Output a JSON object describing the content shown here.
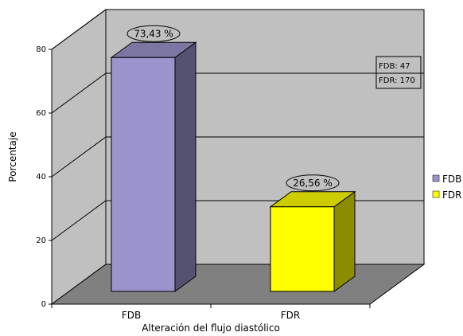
{
  "chart_data": {
    "type": "bar",
    "style": "3d",
    "categories": [
      "FDB",
      "FDR"
    ],
    "values": [
      73.43,
      26.56
    ],
    "data_labels": [
      "73,43 %",
      "26,56 %"
    ],
    "colors": [
      "#9b94cc",
      "#ffff00"
    ],
    "xlabel": "Alteración del flujo diastólico",
    "ylabel": "Porcentaje",
    "ylim": [
      0,
      80
    ],
    "yticks": [
      "0",
      "20",
      "40",
      "60",
      "80"
    ],
    "grid": true,
    "legend": {
      "placement": "right",
      "entries": [
        {
          "name": "FDB",
          "color": "#9b94cc"
        },
        {
          "name": "FDR",
          "color": "#ffff00"
        }
      ]
    },
    "annotation": [
      "FDB: 47",
      "FDR: 170"
    ]
  }
}
